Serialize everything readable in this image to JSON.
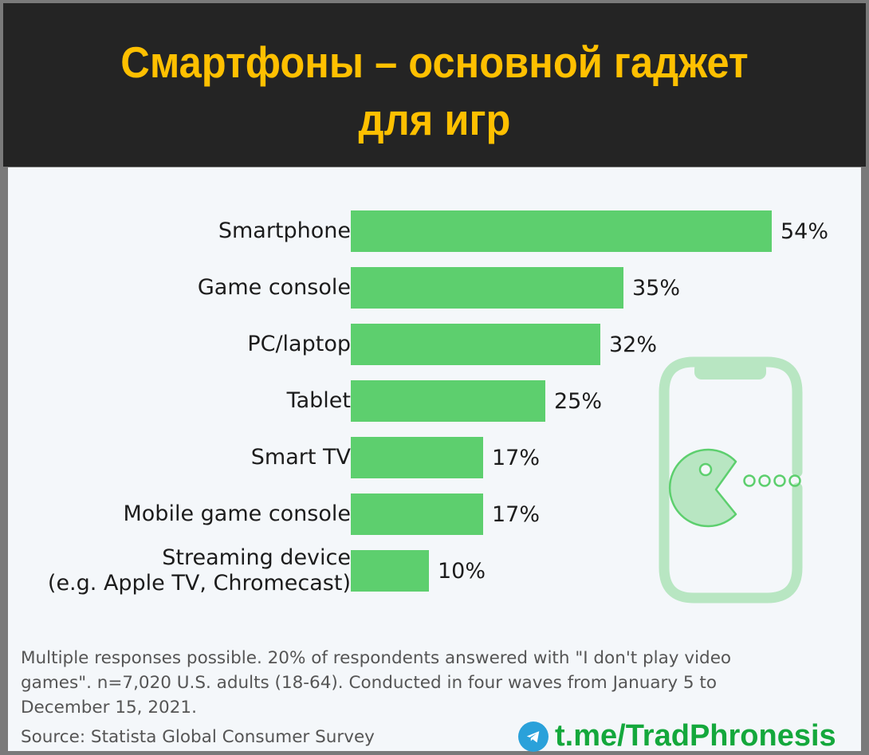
{
  "header": {
    "title_line1": "Смартфоны – основной гаджет",
    "title_line2": "для игр"
  },
  "colors": {
    "bar": "#5dcf6e",
    "title": "#ffc000",
    "header_bg": "#242424",
    "panel_bg": "#f4f7fa",
    "brand": "#14a83c",
    "telegram": "#2aa1da",
    "illustration": "#b8e6c2"
  },
  "chart_data": {
    "type": "bar",
    "orientation": "horizontal",
    "title": "Смартфоны – основной гаджет для игр",
    "categories": [
      "Smartphone",
      "Game console",
      "PC/laptop",
      "Tablet",
      "Smart TV",
      "Mobile game console",
      "Streaming device\n(e.g. Apple TV, Chromecast)"
    ],
    "values": [
      54,
      35,
      32,
      25,
      17,
      17,
      10
    ],
    "value_labels": [
      "54%",
      "35%",
      "32%",
      "25%",
      "17%",
      "17%",
      "10%"
    ],
    "unit": "%",
    "xlabel": "",
    "ylabel": "",
    "xlim": [
      0,
      54
    ],
    "grid": false,
    "legend": null
  },
  "footer": {
    "note": "Multiple responses possible. 20% of respondents answered with \"I don't play video games\". n=7,020 U.S. adults (18-64). Conducted in four waves from January 5 to December 15, 2021.",
    "source": "Source: Statista Global Consumer Survey",
    "brand": "t.me/TradPhronesis"
  }
}
